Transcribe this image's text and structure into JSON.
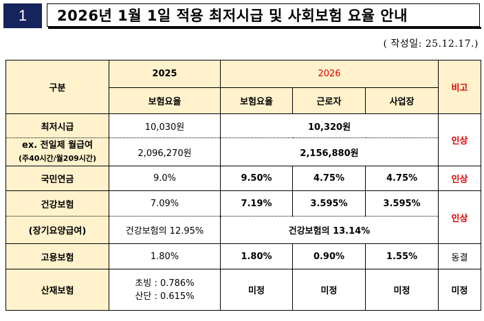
{
  "header": {
    "number": "1",
    "title": "2026년 1월 1일 적용 최저시급 및 사회보험 요율 안내",
    "date": "( 작성일: 25.12.17.)"
  },
  "table": {
    "col_header": "구분",
    "year_2025": "2025",
    "year_2026": "2026",
    "remark": "비고",
    "sub_2025": "보험요율",
    "sub_2026_rate": "보험요율",
    "sub_2026_worker": "근로자",
    "sub_2026_employer": "사업장",
    "min_wage": {
      "label": "최저시급",
      "v2025": "10,030원",
      "v2026": "10,320원"
    },
    "monthly": {
      "label_line1": "ex. 전일제 월급여",
      "label_line2": "(주40시간/월209시간)",
      "v2025": "2,096,270원",
      "v2026": "2,156,880원",
      "remark": "인상"
    },
    "pension": {
      "label": "국민연금",
      "v2025": "9.0%",
      "rate": "9.50%",
      "worker": "4.75%",
      "employer": "4.75%",
      "remark": "인상"
    },
    "health": {
      "label": "건강보험",
      "v2025": "7.09%",
      "rate": "7.19%",
      "worker": "3.595%",
      "employer": "3.595%",
      "remark": "인상"
    },
    "ltc": {
      "label": "(장기요양급여)",
      "v2025": "건강보험의 12.95%",
      "v2026": "건강보험의 13.14%"
    },
    "employment": {
      "label": "고용보험",
      "v2025": "1.80%",
      "rate": "1.80%",
      "worker": "0.90%",
      "employer": "1.55%",
      "remark": "동결"
    },
    "industrial": {
      "label": "산재보험",
      "v2025_line1": "초빙 : 0.786%",
      "v2025_line2": "산단 : 0.615%",
      "rate": "미정",
      "worker": "미정",
      "employer": "미정",
      "remark": "미정"
    }
  }
}
